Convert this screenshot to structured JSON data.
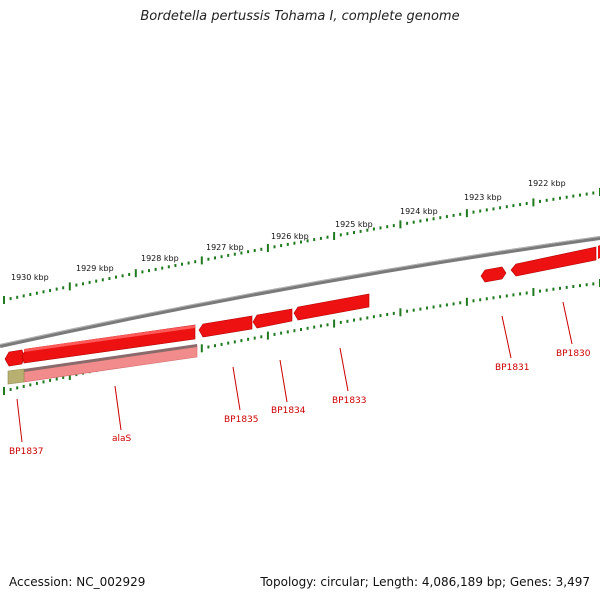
{
  "title": "Bordetella pertussis Tohama I, complete genome",
  "accession_label": "Accession: NC_002929",
  "summary_label": "Topology: circular; Length: 4,086,189 bp; Genes: 3,497",
  "colors": {
    "backbone": "#7a7a7a",
    "ruler": "#1f7a1f",
    "gene": "#ee1111",
    "gene_dark": "#b30000",
    "gene_light": "#f28b8b",
    "gene_label": "#cc0000",
    "overlap": "#b8b070"
  },
  "ruler_ticks": [
    {
      "label": "1930 kbp"
    },
    {
      "label": "1929 kbp"
    },
    {
      "label": "1928 kbp"
    },
    {
      "label": "1927 kbp"
    },
    {
      "label": "1926 kbp"
    },
    {
      "label": "1925 kbp"
    },
    {
      "label": "1924 kbp"
    },
    {
      "label": "1923 kbp"
    },
    {
      "label": "1922 kbp"
    }
  ],
  "genes": [
    {
      "name": "BP1837"
    },
    {
      "name": "alaS"
    },
    {
      "name": "BP1835"
    },
    {
      "name": "BP1834"
    },
    {
      "name": "BP1833"
    },
    {
      "name": "BP1831"
    },
    {
      "name": "BP1830"
    }
  ]
}
